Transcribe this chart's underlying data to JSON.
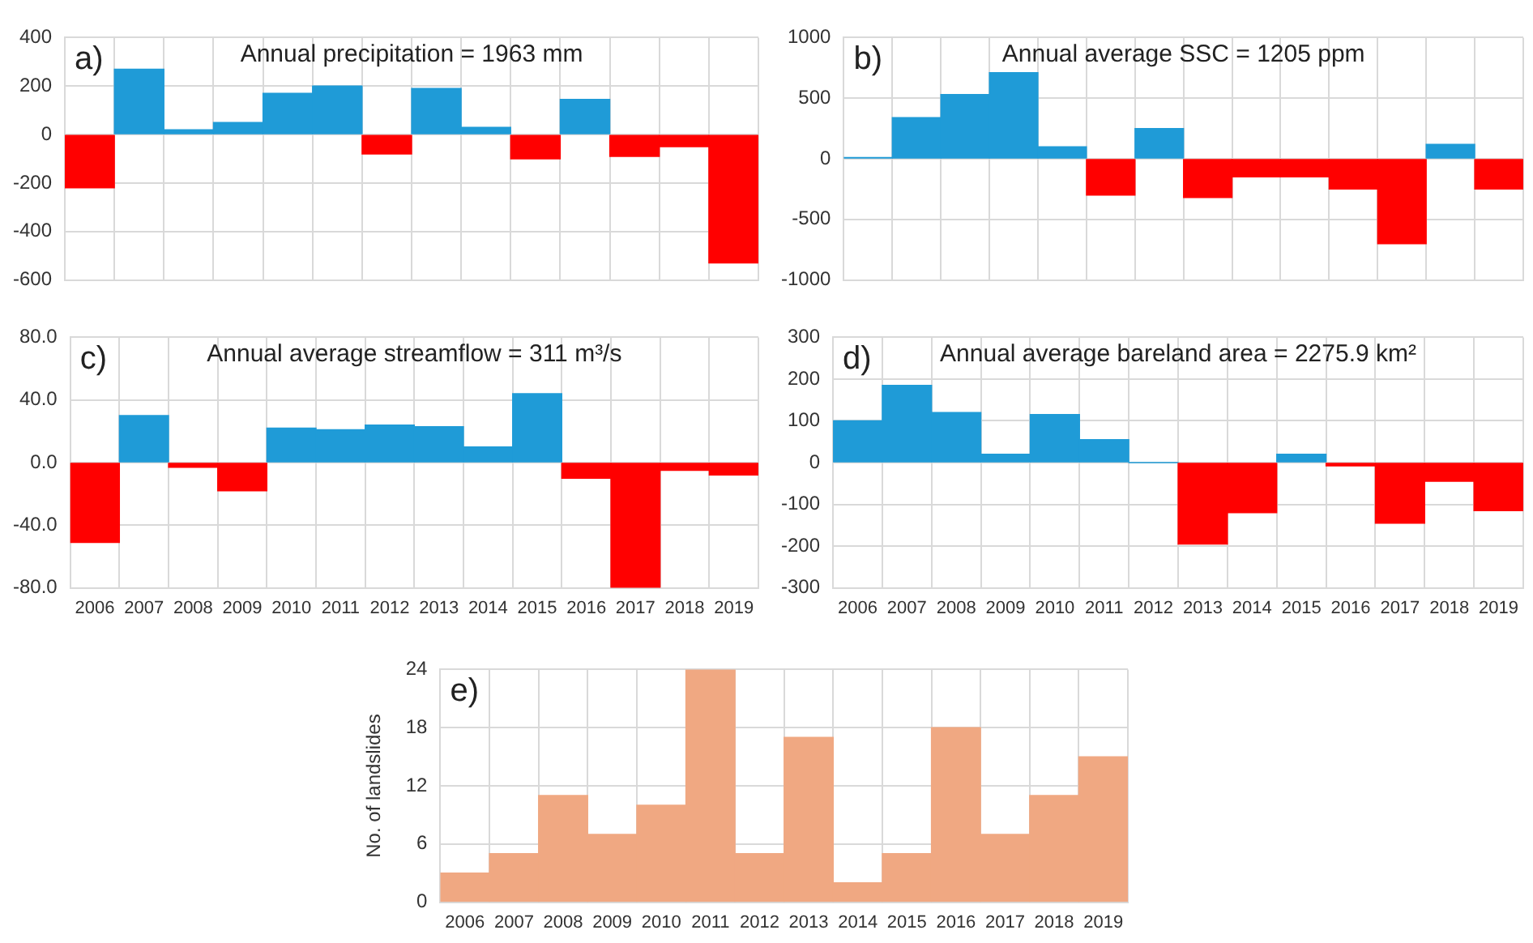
{
  "chart_data": [
    {
      "type": "bar",
      "title": "Annual precipitation = 1963 mm",
      "annotations": [
        "a)"
      ],
      "categories": [
        "2006",
        "2007",
        "2008",
        "2009",
        "2010",
        "2011",
        "2012",
        "2013",
        "2014",
        "2015",
        "2016",
        "2017",
        "2018",
        "2019"
      ],
      "values": [
        -220,
        270,
        20,
        50,
        170,
        200,
        -80,
        190,
        30,
        -100,
        145,
        -90,
        -50,
        -530
      ],
      "colors": [
        "#ff0000",
        "#1f9bd7",
        "#1f9bd7",
        "#1f9bd7",
        "#1f9bd7",
        "#1f9bd7",
        "#ff0000",
        "#1f9bd7",
        "#1f9bd7",
        "#ff0000",
        "#1f9bd7",
        "#ff0000",
        "#ff0000",
        "#ff0000"
      ],
      "ylim": [
        -600,
        400
      ],
      "yticks": [
        -600,
        -400,
        -200,
        0,
        200,
        400
      ],
      "grid": true,
      "tick_labels": "y"
    },
    {
      "type": "bar",
      "title": "Annual average SSC = 1205 ppm",
      "annotations": [
        "b)"
      ],
      "categories": [
        "2006",
        "2007",
        "2008",
        "2009",
        "2010",
        "2011",
        "2012",
        "2013",
        "2014",
        "2015",
        "2016",
        "2017",
        "2018",
        "2019"
      ],
      "values": [
        10,
        340,
        530,
        710,
        100,
        -300,
        250,
        -320,
        -150,
        -150,
        -250,
        -700,
        120,
        -250
      ],
      "colors": [
        "#1f9bd7",
        "#1f9bd7",
        "#1f9bd7",
        "#1f9bd7",
        "#1f9bd7",
        "#ff0000",
        "#1f9bd7",
        "#ff0000",
        "#ff0000",
        "#ff0000",
        "#ff0000",
        "#ff0000",
        "#1f9bd7",
        "#ff0000"
      ],
      "ylim": [
        -1000,
        1000
      ],
      "yticks": [
        -1000,
        -500,
        0,
        500,
        1000
      ],
      "grid": true,
      "tick_labels": "y"
    },
    {
      "type": "bar",
      "title": "Annual average streamflow = 311 m³/s",
      "annotations": [
        "c)"
      ],
      "categories": [
        "2006",
        "2007",
        "2008",
        "2009",
        "2010",
        "2011",
        "2012",
        "2013",
        "2014",
        "2015",
        "2016",
        "2017",
        "2018",
        "2019"
      ],
      "values": [
        -51,
        30,
        -3,
        -18,
        22,
        21,
        24,
        23,
        10,
        44,
        -10,
        -80,
        -5,
        -8
      ],
      "colors": [
        "#ff0000",
        "#1f9bd7",
        "#ff0000",
        "#ff0000",
        "#1f9bd7",
        "#1f9bd7",
        "#1f9bd7",
        "#1f9bd7",
        "#1f9bd7",
        "#1f9bd7",
        "#ff0000",
        "#ff0000",
        "#ff0000",
        "#ff0000"
      ],
      "ylim": [
        -80,
        80
      ],
      "yticks": [
        {
          "value": -80,
          "label": "-80.0"
        },
        {
          "value": -40,
          "label": "-40.0"
        },
        {
          "value": 0,
          "label": "0.0"
        },
        {
          "value": 40,
          "label": "40.0"
        },
        {
          "value": 80,
          "label": "80.0"
        }
      ],
      "grid": true
    },
    {
      "type": "bar",
      "title": "Annual average bareland area = 2275.9 km²",
      "annotations": [
        "d)"
      ],
      "categories": [
        "2006",
        "2007",
        "2008",
        "2009",
        "2010",
        "2011",
        "2012",
        "2013",
        "2014",
        "2015",
        "2016",
        "2017",
        "2018",
        "2019"
      ],
      "values": [
        100,
        185,
        120,
        20,
        115,
        55,
        0,
        -195,
        -120,
        20,
        -8,
        -145,
        -45,
        -115
      ],
      "colors": [
        "#1f9bd7",
        "#1f9bd7",
        "#1f9bd7",
        "#1f9bd7",
        "#1f9bd7",
        "#1f9bd7",
        "#1f9bd7",
        "#ff0000",
        "#ff0000",
        "#1f9bd7",
        "#ff0000",
        "#ff0000",
        "#ff0000",
        "#ff0000"
      ],
      "ylim": [
        -300,
        300
      ],
      "yticks": [
        -300,
        -200,
        -100,
        0,
        100,
        200,
        300
      ],
      "grid": true
    },
    {
      "type": "bar",
      "ylabel": "No. of landslides",
      "annotations": [
        "e)"
      ],
      "categories": [
        "2006",
        "2007",
        "2008",
        "2009",
        "2010",
        "2011",
        "2012",
        "2013",
        "2014",
        "2015",
        "2016",
        "2017",
        "2018",
        "2019"
      ],
      "values": [
        3,
        5,
        11,
        7,
        10,
        24,
        5,
        17,
        2,
        5,
        18,
        7,
        11,
        15
      ],
      "color": "#f0a882",
      "ylim": [
        0,
        24
      ],
      "yticks": [
        0,
        6,
        12,
        18,
        24
      ],
      "grid": true
    }
  ]
}
